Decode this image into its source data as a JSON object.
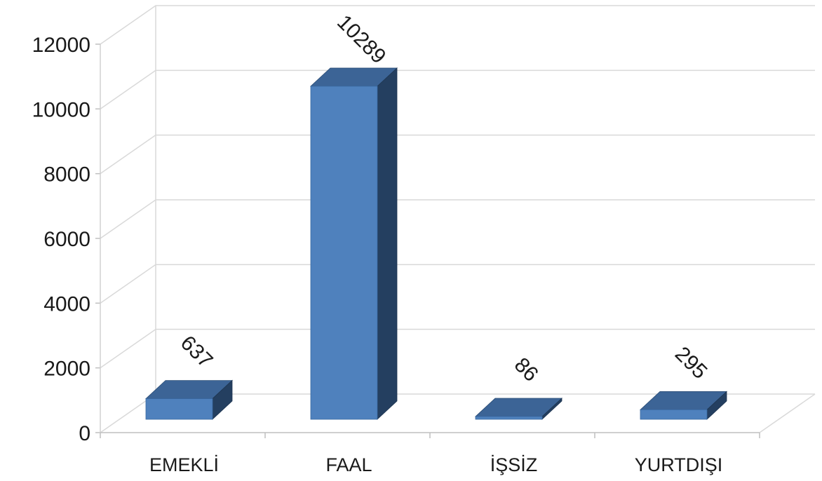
{
  "chart_data": {
    "type": "bar",
    "categories": [
      "EMEKLİ",
      "FAAL",
      "İŞSİZ",
      "YURTDIŞI"
    ],
    "values": [
      637,
      10289,
      86,
      295
    ],
    "data_labels": [
      "637",
      "10289",
      "86",
      "295"
    ],
    "ylim": [
      0,
      12000
    ],
    "yticks": [
      0,
      2000,
      4000,
      6000,
      8000,
      10000,
      12000
    ],
    "ytick_labels": [
      "0",
      "2000",
      "4000",
      "6000",
      "8000",
      "10000",
      "12000"
    ],
    "grid": true,
    "legend": "none",
    "style": "3d-column",
    "colors": {
      "front": "#4f81bd",
      "top": "#3c6496",
      "side": "#243f60",
      "grid": "#d9d9d9"
    }
  }
}
